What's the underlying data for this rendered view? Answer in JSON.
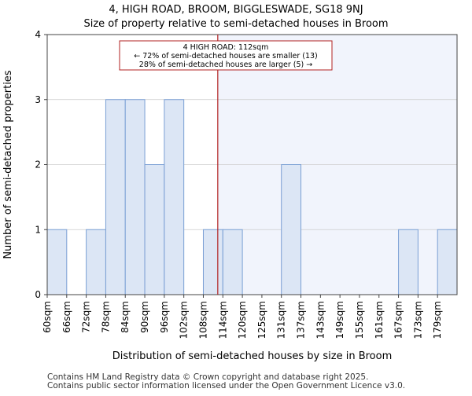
{
  "chart_data": {
    "type": "bar",
    "title": "4, HIGH ROAD, BROOM, BIGGLESWADE, SG18 9NJ",
    "subtitle": "Size of property relative to semi-detached houses in Broom",
    "xlabel": "Distribution of semi-detached houses by size in Broom",
    "ylabel": "Number of semi-detached properties",
    "categories": [
      "60sqm",
      "66sqm",
      "72sqm",
      "78sqm",
      "84sqm",
      "90sqm",
      "96sqm",
      "102sqm",
      "108sqm",
      "114sqm",
      "120sqm",
      "125sqm",
      "131sqm",
      "137sqm",
      "143sqm",
      "149sqm",
      "155sqm",
      "161sqm",
      "167sqm",
      "173sqm",
      "179sqm"
    ],
    "values": [
      1,
      0,
      1,
      3,
      3,
      2,
      3,
      0,
      1,
      1,
      0,
      0,
      2,
      0,
      0,
      0,
      0,
      0,
      1,
      0,
      1
    ],
    "ylim": [
      0,
      4
    ],
    "yticks": [
      0,
      1,
      2,
      3,
      4
    ],
    "marker": {
      "value_sqm": 112,
      "label_line1": "4 HIGH ROAD: 112sqm",
      "label_line2": "← 72% of semi-detached houses are smaller (13)",
      "label_line3": "28% of semi-detached houses are larger (5) →"
    },
    "colors": {
      "bar_fill": "#dce6f5",
      "bar_stroke": "#7a9fd4",
      "marker_line": "#b22222",
      "highlight_region": "#f1f4fc",
      "grid": "#cccccc"
    }
  },
  "footer": {
    "line1": "Contains HM Land Registry data © Crown copyright and database right 2025.",
    "line2": "Contains public sector information licensed under the Open Government Licence v3.0."
  }
}
